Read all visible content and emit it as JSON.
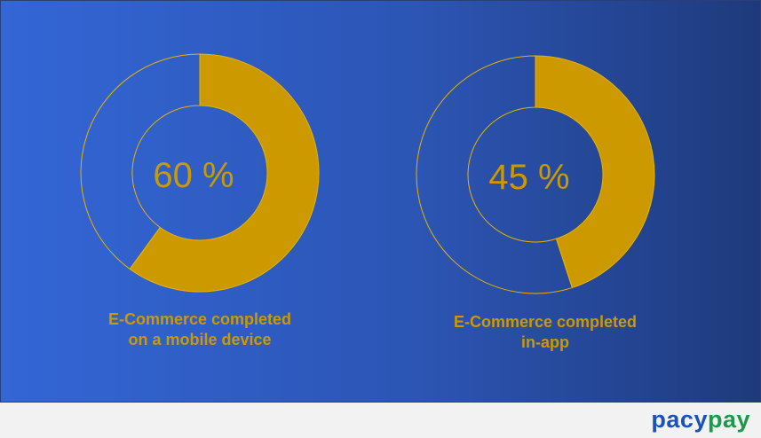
{
  "colors": {
    "accent": "#cc9900",
    "background_start": "#3366d6",
    "background_end": "#1e3a7c",
    "logo_blue": "#1a52b8",
    "logo_green": "#1a9a4a"
  },
  "chart_data": [
    {
      "type": "pie",
      "variant": "donut",
      "values": [
        60,
        40
      ],
      "label": "60 %",
      "caption_lines": [
        "E-Commerce completed",
        "on a mobile device"
      ]
    },
    {
      "type": "pie",
      "variant": "donut",
      "values": [
        45,
        55
      ],
      "label": "45 %",
      "caption_lines": [
        "E-Commerce completed",
        "in-app"
      ]
    }
  ],
  "logo": {
    "part1": "pacy",
    "part2": "pay"
  }
}
